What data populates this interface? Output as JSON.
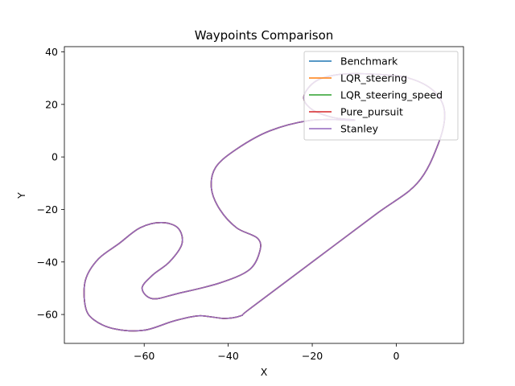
{
  "chart_data": {
    "type": "line",
    "title": "Waypoints Comparison",
    "xlabel": "X",
    "ylabel": "Y",
    "xlim": [
      -79,
      16
    ],
    "ylim": [
      -71,
      42
    ],
    "xticks": [
      -60,
      -40,
      -20,
      0
    ],
    "yticks": [
      40,
      20,
      0,
      -20,
      -40,
      -60
    ],
    "grid": false,
    "legend": "top-right",
    "track": [
      [
        -20.0,
        14.0
      ],
      [
        -30.0,
        10.0
      ],
      [
        -38.0,
        3.0
      ],
      [
        -43.0,
        -4.0
      ],
      [
        -44.0,
        -12.0
      ],
      [
        -42.0,
        -20.0
      ],
      [
        -38.0,
        -27.0
      ],
      [
        -33.0,
        -31.0
      ],
      [
        -32.5,
        -36.0
      ],
      [
        -35.0,
        -43.0
      ],
      [
        -42.0,
        -48.0
      ],
      [
        -52.0,
        -52.0
      ],
      [
        -58.0,
        -54.0
      ],
      [
        -60.5,
        -50.0
      ],
      [
        -58.0,
        -45.0
      ],
      [
        -54.0,
        -40.0
      ],
      [
        -51.0,
        -33.0
      ],
      [
        -52.0,
        -27.0
      ],
      [
        -56.0,
        -25.0
      ],
      [
        -61.0,
        -27.0
      ],
      [
        -66.0,
        -33.0
      ],
      [
        -71.0,
        -39.0
      ],
      [
        -74.0,
        -47.0
      ],
      [
        -74.0,
        -57.0
      ],
      [
        -72.0,
        -62.0
      ],
      [
        -67.0,
        -65.5
      ],
      [
        -60.0,
        -66.0
      ],
      [
        -53.0,
        -62.5
      ],
      [
        -47.0,
        -60.5
      ],
      [
        -41.0,
        -61.5
      ],
      [
        -37.0,
        -60.5
      ],
      [
        -35.0,
        -58.0
      ],
      [
        -20.0,
        -40.0
      ],
      [
        -5.0,
        -22.0
      ],
      [
        5.0,
        -10.0
      ],
      [
        10.0,
        5.0
      ],
      [
        11.5,
        17.0
      ],
      [
        9.0,
        25.0
      ],
      [
        3.0,
        30.0
      ],
      [
        -5.0,
        31.5
      ],
      [
        -13.0,
        31.5
      ],
      [
        -19.0,
        29.0
      ],
      [
        -22.0,
        23.0
      ],
      [
        -20.0,
        18.0
      ],
      [
        -15.0,
        15.0
      ],
      [
        -10.0,
        14.0
      ]
    ],
    "series": [
      {
        "name": "Benchmark",
        "color": "#1f77b4"
      },
      {
        "name": "LQR_steering",
        "color": "#ff7f0e"
      },
      {
        "name": "LQR_steering_speed",
        "color": "#2ca02c"
      },
      {
        "name": "Pure_pursuit",
        "color": "#d62728"
      },
      {
        "name": "Stanley",
        "color": "#9467bd"
      }
    ]
  }
}
